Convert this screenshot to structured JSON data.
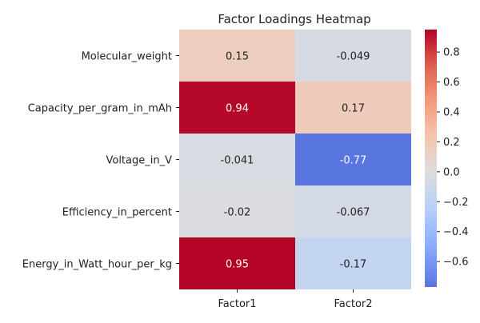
{
  "chart_data": {
    "type": "heatmap",
    "title": "Factor Loadings Heatmap",
    "xlabel": "",
    "ylabel": "",
    "columns": [
      "Factor1",
      "Factor2"
    ],
    "rows": [
      "Molecular_weight",
      "Capacity_per_gram_in_mAh",
      "Voltage_in_V",
      "Efficiency_in_percent",
      "Energy_in_Watt_hour_per_kg"
    ],
    "values": [
      [
        0.15,
        -0.049
      ],
      [
        0.94,
        0.17
      ],
      [
        -0.041,
        -0.77
      ],
      [
        -0.02,
        -0.067
      ],
      [
        0.95,
        -0.17
      ]
    ],
    "value_labels": [
      [
        "0.15",
        "-0.049"
      ],
      [
        "0.94",
        "0.17"
      ],
      [
        "-0.041",
        "-0.77"
      ],
      [
        "-0.02",
        "-0.067"
      ],
      [
        "0.95",
        "-0.17"
      ]
    ],
    "colorbar": {
      "colormap": "coolwarm",
      "vmin": -0.77,
      "vmax": 0.95,
      "center": 0,
      "ticks": [
        -0.6,
        -0.4,
        -0.2,
        0.0,
        0.2,
        0.4,
        0.6,
        0.8
      ],
      "tick_labels": [
        "−0.6",
        "−0.4",
        "−0.2",
        "0.0",
        "0.2",
        "0.4",
        "0.6",
        "0.8"
      ]
    },
    "grid": false,
    "legend": "colorbar-right"
  }
}
